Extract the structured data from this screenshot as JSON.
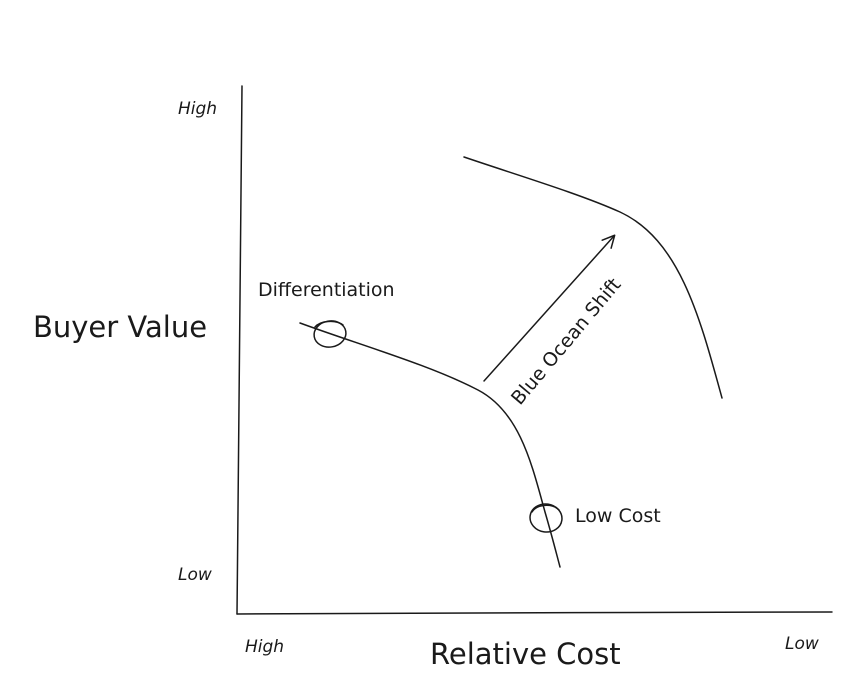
{
  "axes": {
    "y_label": "Buyer Value",
    "x_label": "Relative Cost",
    "y_high": "High",
    "y_low": "Low",
    "x_high": "High",
    "x_low": "Low"
  },
  "curves": {
    "current_curve": "existing value-cost frontier",
    "shifted_curve": "blue ocean frontier"
  },
  "points": {
    "differentiation": "Differentiation",
    "low_cost": "Low Cost"
  },
  "arrow": {
    "label": "Blue Ocean Shift"
  },
  "colors": {
    "ink": "#1a1a1a",
    "background": "#ffffff"
  }
}
